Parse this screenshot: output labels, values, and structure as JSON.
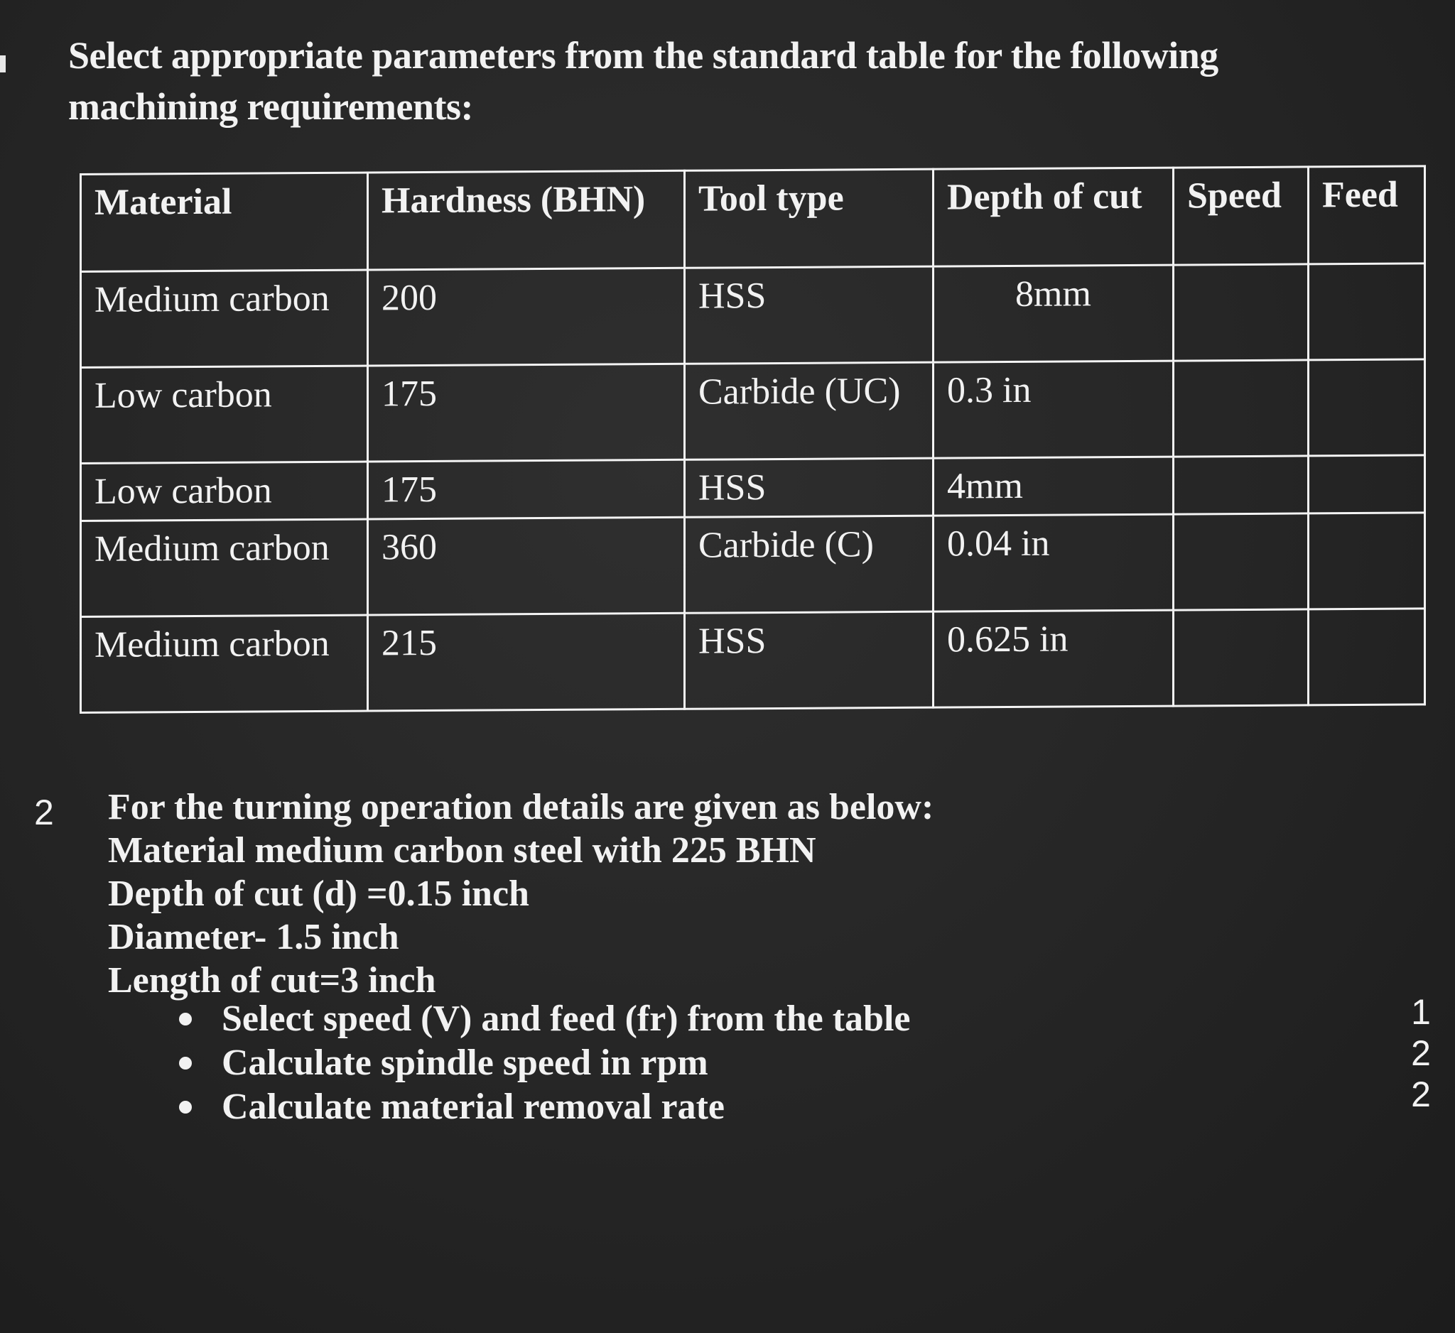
{
  "question1": {
    "heading_line1": "Select appropriate parameters from the standard table for the following",
    "heading_line2": "machining requirements:",
    "table": {
      "headers": [
        "Material",
        "Hardness (BHN)",
        "Tool type",
        "Depth of cut",
        "Speed",
        "Feed"
      ],
      "rows": [
        [
          "Medium carbon",
          "200",
          "HSS",
          "8mm",
          "",
          ""
        ],
        [
          "Low carbon",
          "175",
          "Carbide (UC)",
          "0.3 in",
          "",
          ""
        ],
        [
          "Low carbon",
          "175",
          "HSS",
          "4mm",
          "",
          ""
        ],
        [
          "Medium carbon",
          "360",
          "Carbide (C)",
          "0.04 in",
          "",
          ""
        ],
        [
          "Medium carbon",
          "215",
          "HSS",
          "0.625 in",
          "",
          ""
        ]
      ]
    }
  },
  "question2": {
    "number": "2",
    "intro": "For the turning operation details are given as below:",
    "details": [
      "Material medium carbon steel with 225 BHN",
      "Depth of cut (d) =0.15 inch",
      "Diameter- 1.5 inch",
      "Length of cut=3 inch"
    ],
    "tasks": [
      "Select speed (V) and feed (fr) from the table",
      "Calculate spindle speed in rpm",
      "Calculate material removal rate"
    ],
    "marks": [
      "1",
      "2",
      "2"
    ]
  }
}
